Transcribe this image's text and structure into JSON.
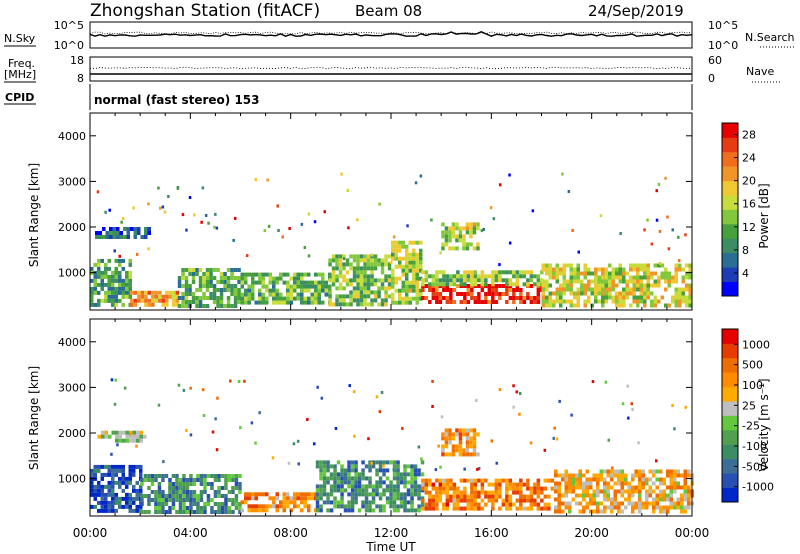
{
  "header": {
    "station": "Zhongshan Station (fitACF)",
    "beam": "Beam 08",
    "date": "24/Sep/2019"
  },
  "sky_panel": {
    "left_label": "N.Sky",
    "left_ticks": [
      "10^5",
      "10^0"
    ],
    "right_label": "N.Search",
    "right_ticks": [
      "10^5",
      "10^0"
    ]
  },
  "freq_panel": {
    "left_label_line1": "Freq.",
    "left_label_line2": "[MHz]",
    "left_ticks": [
      "18",
      "8"
    ],
    "right_label": "Nave",
    "right_ticks": [
      "60",
      "0"
    ]
  },
  "cpid": {
    "label": "CPID",
    "value": "normal (fast stereo) 153"
  },
  "colors": {
    "power": [
      "#0000ff",
      "#1e3cb4",
      "#2a6e96",
      "#3c8c64",
      "#46a03c",
      "#82c83c",
      "#c8dc3c",
      "#f0c832",
      "#f09628",
      "#f06e1e",
      "#e63c14",
      "#e60000"
    ],
    "velocity": [
      "#0028c8",
      "#2850b4",
      "#3c6e96",
      "#3c8c64",
      "#50a050",
      "#64c83c",
      "#bebebe",
      "#ffaa00",
      "#ff8c00",
      "#f06e00",
      "#e63c00",
      "#e60000"
    ]
  },
  "chart_data": [
    {
      "type": "heatmap",
      "name": "power",
      "ylabel": "Slant Range [km]",
      "xlabel": "Time UT",
      "xlim": [
        0,
        24
      ],
      "ylim": [
        180,
        4500
      ],
      "x_ticks": [
        "00:00",
        "04:00",
        "08:00",
        "12:00",
        "16:00",
        "20:00",
        "00:00"
      ],
      "y_ticks": [
        1000,
        2000,
        3000,
        4000
      ],
      "colorbar": {
        "label": "Power [dB]",
        "ticks": [
          4,
          8,
          12,
          16,
          20,
          24,
          28
        ],
        "range": [
          0,
          30
        ]
      },
      "regions": [
        {
          "t": [
            0,
            1.6
          ],
          "r": [
            300,
            1300
          ],
          "level": 0.35
        },
        {
          "t": [
            0.2,
            2.3
          ],
          "r": [
            1800,
            2000
          ],
          "level": 0.2
        },
        {
          "t": [
            1.6,
            3.5
          ],
          "r": [
            300,
            600
          ],
          "level": 0.7
        },
        {
          "t": [
            3.5,
            6.0
          ],
          "r": [
            300,
            1100
          ],
          "level": 0.35
        },
        {
          "t": [
            6.0,
            9.5
          ],
          "r": [
            300,
            1000
          ],
          "level": 0.4
        },
        {
          "t": [
            9.5,
            12.0
          ],
          "r": [
            300,
            1400
          ],
          "level": 0.45
        },
        {
          "t": [
            12.0,
            13.2
          ],
          "r": [
            300,
            1700
          ],
          "level": 0.5
        },
        {
          "t": [
            13.2,
            18.0
          ],
          "r": [
            350,
            750
          ],
          "level": 0.9
        },
        {
          "t": [
            13.2,
            18.0
          ],
          "r": [
            750,
            1050
          ],
          "level": 0.45
        },
        {
          "t": [
            14.0,
            15.5
          ],
          "r": [
            1500,
            2100
          ],
          "level": 0.5
        },
        {
          "t": [
            18.0,
            24.0
          ],
          "r": [
            300,
            1200
          ],
          "level": 0.55
        }
      ]
    },
    {
      "type": "heatmap",
      "name": "velocity",
      "ylabel": "Slant Range [km]",
      "xlabel": "Time UT",
      "xlim": [
        0,
        24
      ],
      "ylim": [
        180,
        4500
      ],
      "x_ticks": [
        "00:00",
        "04:00",
        "08:00",
        "12:00",
        "16:00",
        "20:00",
        "00:00"
      ],
      "y_ticks": [
        1000,
        2000,
        3000,
        4000
      ],
      "colorbar": {
        "label": "Velocity [m s⁻¹]",
        "ticks": [
          1000,
          500,
          100,
          25,
          -25,
          -100,
          -500,
          -1000
        ]
      },
      "regions": [
        {
          "t": [
            0,
            2.0
          ],
          "r": [
            300,
            1300
          ],
          "level": 0.12
        },
        {
          "t": [
            0.3,
            2.2
          ],
          "r": [
            1800,
            2050
          ],
          "level": 0.5
        },
        {
          "t": [
            2.0,
            6.0
          ],
          "r": [
            300,
            1100
          ],
          "level": 0.3
        },
        {
          "t": [
            6.0,
            9.0
          ],
          "r": [
            300,
            700
          ],
          "level": 0.7
        },
        {
          "t": [
            9.0,
            13.2
          ],
          "r": [
            300,
            1400
          ],
          "level": 0.3
        },
        {
          "t": [
            13.2,
            18.5
          ],
          "r": [
            350,
            1000
          ],
          "level": 0.75
        },
        {
          "t": [
            14.0,
            15.5
          ],
          "r": [
            1500,
            2100
          ],
          "level": 0.7
        },
        {
          "t": [
            18.5,
            24.0
          ],
          "r": [
            300,
            1200
          ],
          "level": 0.65
        }
      ]
    }
  ]
}
